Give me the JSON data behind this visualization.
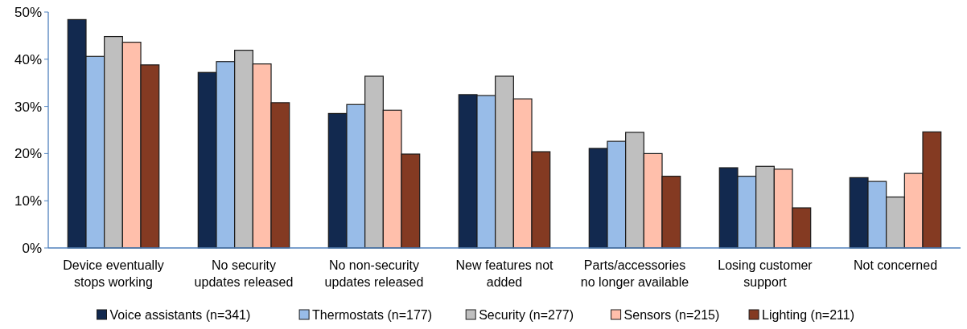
{
  "chart_data": {
    "type": "bar",
    "categories": [
      "Device eventually\nstops working",
      "No security\nupdates released",
      "No non-security\nupdates released",
      "New features not\nadded",
      "Parts/accessories\nno longer available",
      "Losing customer\nsupport",
      "Not concerned"
    ],
    "series": [
      {
        "name": "Voice assistants (n=341)",
        "color": "#12294f",
        "values": [
          48.4,
          37.2,
          28.5,
          32.5,
          21.1,
          17.0,
          14.9
        ]
      },
      {
        "name": "Thermostats (n=177)",
        "color": "#98bce8",
        "values": [
          40.6,
          39.5,
          30.4,
          32.3,
          22.6,
          15.2,
          14.1
        ]
      },
      {
        "name": "Security (n=277)",
        "color": "#bfbfbf",
        "values": [
          44.8,
          41.9,
          36.4,
          36.4,
          24.5,
          17.3,
          10.8
        ]
      },
      {
        "name": "Sensors (n=215)",
        "color": "#ffbfab",
        "values": [
          43.6,
          39.0,
          29.2,
          31.6,
          20.0,
          16.7,
          15.8
        ]
      },
      {
        "name": "Lighting (n=211)",
        "color": "#843a22",
        "values": [
          38.8,
          30.8,
          19.9,
          20.4,
          15.2,
          8.5,
          24.6
        ]
      }
    ],
    "ylim": [
      0,
      50
    ],
    "yticks": [
      {
        "value": 0,
        "label": "0%"
      },
      {
        "value": 10,
        "label": "10%"
      },
      {
        "value": 20,
        "label": "20%"
      },
      {
        "value": 30,
        "label": "30%"
      },
      {
        "value": 40,
        "label": "40%"
      },
      {
        "value": 50,
        "label": "50%"
      }
    ],
    "legend": "bottom"
  }
}
